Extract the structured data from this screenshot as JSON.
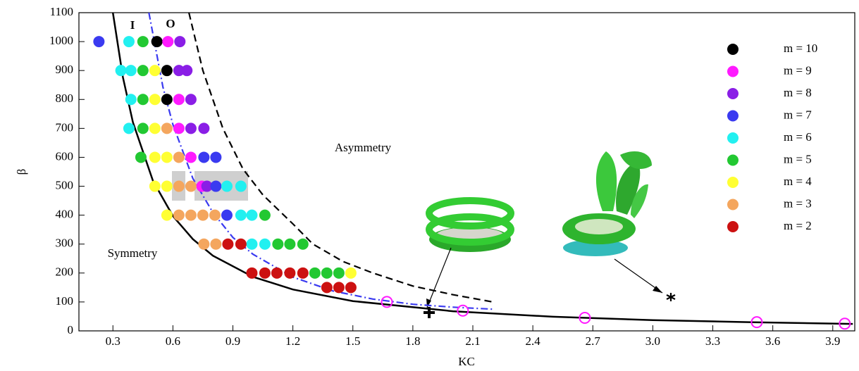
{
  "chart_data": {
    "type": "scatter",
    "xlabel": "KC",
    "ylabel": "β",
    "xlim": [
      0.13,
      4.01
    ],
    "ylim": [
      0,
      1100
    ],
    "xticks": [
      0.3,
      0.6,
      0.9,
      1.2,
      1.5,
      1.8,
      2.1,
      2.4,
      2.7,
      {
        "value": 3,
        "label": "3.0"
      },
      3.3,
      3.6,
      3.9
    ],
    "yticks": [
      0,
      100,
      200,
      300,
      400,
      500,
      600,
      700,
      800,
      900,
      1000,
      1100
    ],
    "legend": "upper right",
    "annotations": [
      "I",
      "O",
      "Asymmetry",
      "Symmetry"
    ],
    "series": [
      {
        "name": "m = 10",
        "color": "#000000",
        "x": [
          0.52,
          0.57,
          0.57
        ],
        "y": [
          1000,
          900,
          800
        ]
      },
      {
        "name": "m = 9",
        "color": "#ff1aff",
        "x": [
          0.575,
          0.63,
          0.63,
          0.69,
          0.745
        ],
        "y": [
          1000,
          800,
          700,
          600,
          500
        ]
      },
      {
        "name": "m = 8",
        "color": "#8a1ee6",
        "x": [
          0.635,
          0.63,
          0.67,
          0.69,
          0.69,
          0.755,
          0.77
        ],
        "y": [
          1000,
          900,
          900,
          800,
          700,
          700,
          500
        ]
      },
      {
        "name": "m = 7",
        "color": "#3a3af0",
        "x": [
          0.23,
          0.755,
          0.815,
          0.815,
          0.87
        ],
        "y": [
          1000,
          600,
          600,
          500,
          400
        ]
      },
      {
        "name": "m = 6",
        "color": "#22f0f0",
        "x": [
          0.38,
          0.34,
          0.39,
          0.39,
          0.38,
          0.87,
          0.94,
          0.94,
          0.995,
          0.995,
          1.06
        ],
        "y": [
          1000,
          900,
          900,
          800,
          700,
          500,
          500,
          400,
          400,
          300,
          300
        ]
      },
      {
        "name": "m = 5",
        "color": "#22c832",
        "x": [
          0.45,
          0.45,
          0.45,
          0.45,
          0.44,
          1.06,
          1.125,
          1.185,
          1.25,
          1.31,
          1.37,
          1.43
        ],
        "y": [
          1000,
          900,
          800,
          700,
          600,
          400,
          300,
          300,
          300,
          200,
          200,
          200
        ]
      },
      {
        "name": "m = 4",
        "color": "#ffff33",
        "x": [
          0.51,
          0.51,
          0.51,
          0.51,
          0.57,
          0.51,
          0.57,
          0.57,
          1.49
        ],
        "y": [
          900,
          800,
          700,
          600,
          600,
          500,
          500,
          400,
          200
        ]
      },
      {
        "name": "m = 3",
        "color": "#f4a65e",
        "x": [
          0.57,
          0.63,
          0.63,
          0.69,
          0.63,
          0.69,
          0.75,
          0.81,
          0.755,
          0.815
        ],
        "y": [
          700,
          600,
          500,
          500,
          400,
          400,
          400,
          400,
          300,
          300
        ]
      },
      {
        "name": "m = 2",
        "color": "#cc1111",
        "x": [
          0.875,
          0.94,
          0.995,
          1.06,
          1.12,
          1.185,
          1.25,
          1.37,
          1.43,
          1.49
        ],
        "y": [
          300,
          300,
          200,
          200,
          200,
          200,
          200,
          150,
          150,
          150
        ]
      }
    ],
    "open_markers": {
      "color": "#ff1aff",
      "x": [
        1.67,
        2.05,
        2.66,
        3.52,
        3.96
      ],
      "y": [
        100,
        70,
        45,
        30,
        25
      ]
    },
    "curves": [
      {
        "color": "#000000",
        "style": "solid",
        "x": [
          0.3,
          0.35,
          0.4,
          0.5,
          0.6,
          0.7,
          0.8,
          1.0,
          1.2,
          1.5,
          2.0,
          2.5,
          3.0,
          3.5,
          4.0
        ],
        "y": [
          1100,
          877,
          721,
          519,
          397,
          317,
          260,
          187,
          143,
          103,
          68,
          49,
          37,
          30,
          24
        ]
      },
      {
        "color": "#3a3af0",
        "style": "dashdot",
        "x": [
          0.48,
          0.55,
          0.6,
          0.7,
          0.8,
          0.9,
          1.0,
          1.2,
          1.4,
          1.6,
          1.8,
          2.0,
          2.2
        ],
        "y": [
          1100,
          843,
          713,
          527,
          409,
          323,
          265,
          186,
          138,
          110,
          92,
          82,
          75
        ]
      },
      {
        "color": "#000000",
        "style": "dashed",
        "x": [
          0.68,
          0.75,
          0.85,
          0.95,
          1.05,
          1.2,
          1.3,
          1.45,
          1.6,
          1.8,
          2.0,
          2.2
        ],
        "y": [
          1100,
          900,
          700,
          560,
          470,
          370,
          300,
          240,
          200,
          155,
          125,
          100
        ]
      }
    ]
  }
}
